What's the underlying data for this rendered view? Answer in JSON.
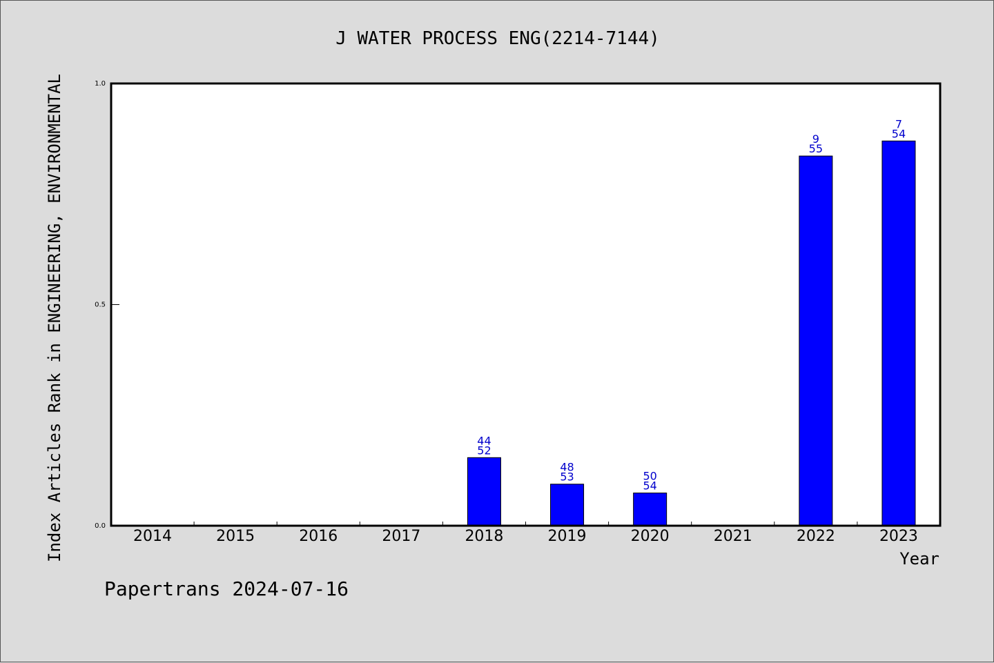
{
  "chart_data": {
    "type": "bar",
    "title": "J WATER PROCESS ENG(2214-7144)",
    "xlabel": "Year",
    "ylabel": "Index Articles Rank in ENGINEERING, ENVIRONMENTAL",
    "categories": [
      "2014",
      "2015",
      "2016",
      "2017",
      "2018",
      "2019",
      "2020",
      "2021",
      "2022",
      "2023"
    ],
    "values": [
      null,
      null,
      null,
      null,
      0.154,
      0.094,
      0.074,
      null,
      0.836,
      0.87
    ],
    "labels_top": [
      "",
      "",
      "",
      "",
      "44",
      "48",
      "50",
      "",
      "9",
      "7"
    ],
    "labels_bottom": [
      "",
      "",
      "",
      "",
      "52",
      "53",
      "54",
      "",
      "55",
      "54"
    ],
    "ylim": [
      0,
      1
    ],
    "yticks": [
      {
        "value": 0,
        "label": "0.0"
      },
      {
        "value": 0.5,
        "label": "0.5"
      },
      {
        "value": 1,
        "label": "1.0"
      }
    ],
    "grid": false,
    "colors": {
      "bar": "#0000ff",
      "bar_edge": "#000000",
      "data_label": "#0000cc",
      "background": "#dcdcdc",
      "plot_background": "#ffffff"
    }
  },
  "footer": {
    "text": "Papertrans 2024-07-16"
  }
}
